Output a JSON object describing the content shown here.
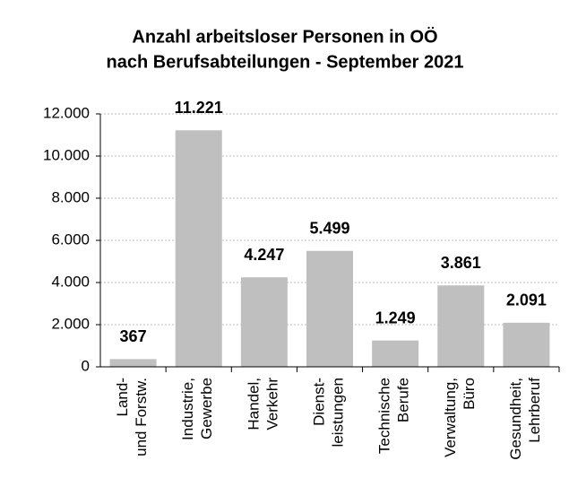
{
  "chart_data": {
    "type": "bar",
    "title": [
      "Anzahl arbeitsloser Personen in OÖ",
      "nach Berufsabteilungen - September 2021"
    ],
    "categories": [
      "Land-\nund Forstw.",
      "Industrie,\nGewerbe",
      "Handel,\nVerkehr",
      "Dienst-\nleistungen",
      "Technische\nBerufe",
      "Verwaltung,\nBüro",
      "Gesundheit,\nLehrberuf"
    ],
    "values": [
      367,
      11221,
      4247,
      5499,
      1249,
      3861,
      2091
    ],
    "value_labels": [
      "367",
      "11.221",
      "4.247",
      "5.499",
      "1.249",
      "3.861",
      "2.091"
    ],
    "color": "#bfbfbf",
    "ylim": [
      0,
      12000
    ],
    "yticks": [
      0,
      {
        "value": 2000,
        "label": "2.000"
      },
      {
        "value": 4000,
        "label": "4.000"
      },
      {
        "value": 6000,
        "label": "6.000"
      },
      {
        "value": 8000,
        "label": "8.000"
      },
      {
        "value": 10000,
        "label": "10.000"
      },
      {
        "value": 12000,
        "label": "12.000"
      }
    ],
    "grid": true
  }
}
